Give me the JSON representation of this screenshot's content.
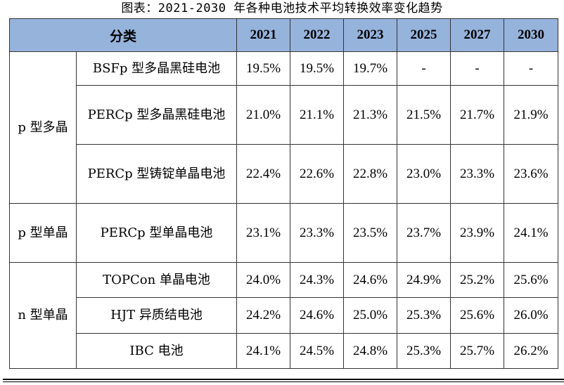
{
  "caption": "图表：2021-2030 年各种电池技术平均转换效率变化趋势",
  "header": {
    "category": "分类",
    "years": [
      "2021",
      "2022",
      "2023",
      "2025",
      "2027",
      "2030"
    ]
  },
  "groups": [
    {
      "label": "p 型多晶",
      "rows": [
        {
          "name": "BSFp 型多晶黑硅电池",
          "values": [
            "19.5%",
            "19.5%",
            "19.7%",
            "-",
            "-",
            "-"
          ]
        },
        {
          "name": "PERCp 型多晶黑硅电池",
          "values": [
            "21.0%",
            "21.1%",
            "21.3%",
            "21.5%",
            "21.7%",
            "21.9%"
          ]
        },
        {
          "name": "PERCp 型铸锭单晶电池",
          "values": [
            "22.4%",
            "22.6%",
            "22.8%",
            "23.0%",
            "23.3%",
            "23.6%"
          ]
        }
      ]
    },
    {
      "label": "p 型单晶",
      "rows": [
        {
          "name": "PERCp 型单晶电池",
          "values": [
            "23.1%",
            "23.3%",
            "23.5%",
            "23.7%",
            "23.9%",
            "24.1%"
          ]
        }
      ]
    },
    {
      "label": "n 型单晶",
      "rows": [
        {
          "name": "TOPCon 单晶电池",
          "values": [
            "24.0%",
            "24.3%",
            "24.6%",
            "24.9%",
            "25.2%",
            "25.6%"
          ]
        },
        {
          "name": "HJT 异质结电池",
          "values": [
            "24.2%",
            "24.6%",
            "25.0%",
            "25.3%",
            "25.6%",
            "26.0%"
          ]
        },
        {
          "name": "IBC 电池",
          "values": [
            "24.1%",
            "24.5%",
            "24.8%",
            "25.3%",
            "25.7%",
            "26.2%"
          ]
        }
      ]
    }
  ]
}
